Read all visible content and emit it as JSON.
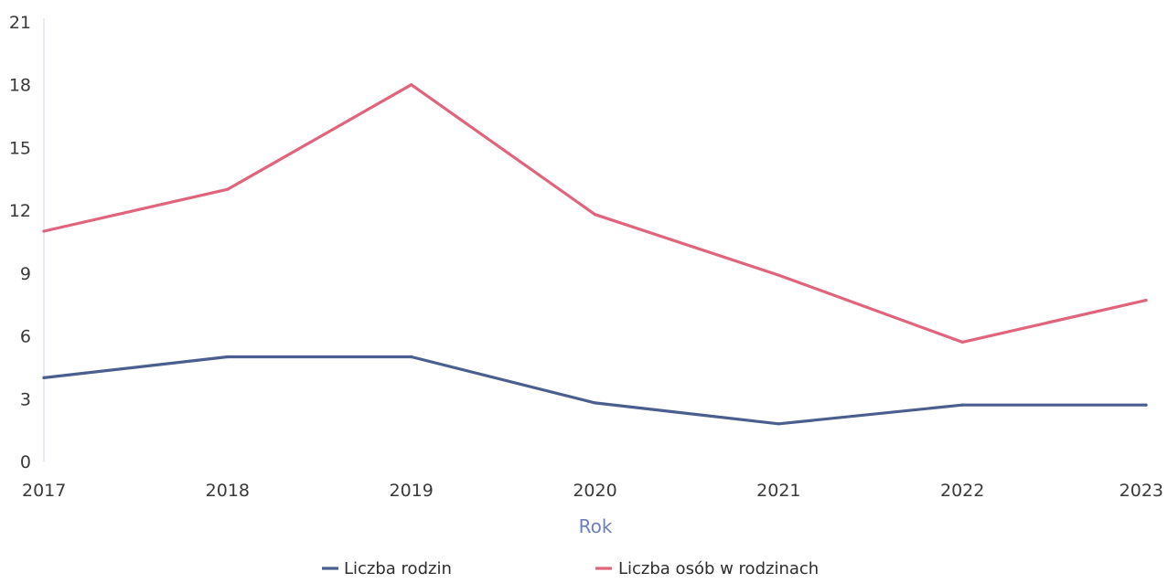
{
  "chart_data": {
    "type": "line",
    "title": "",
    "xlabel": "Rok",
    "ylabel": "",
    "categories": [
      "2017",
      "2018",
      "2019",
      "2020",
      "2021",
      "2022",
      "2023"
    ],
    "yticks": [
      "0",
      "3",
      "6",
      "9",
      "12",
      "15",
      "18",
      "21"
    ],
    "ylim": [
      0,
      21
    ],
    "grid": false,
    "legend_position": "bottom",
    "series": [
      {
        "name": "Liczba rodzin",
        "color": "#4a5f8f",
        "values": [
          4,
          5,
          5,
          2.8,
          1.8,
          2.7,
          2.7
        ]
      },
      {
        "name": "Liczba osób w rodzinach",
        "color": "#e0647c",
        "values": [
          11,
          13,
          18,
          11.8,
          8.9,
          5.7,
          7.7
        ]
      }
    ],
    "colors": {
      "axis_title": "#6b7fbf",
      "y_axis_line": "#d6dcef"
    }
  }
}
